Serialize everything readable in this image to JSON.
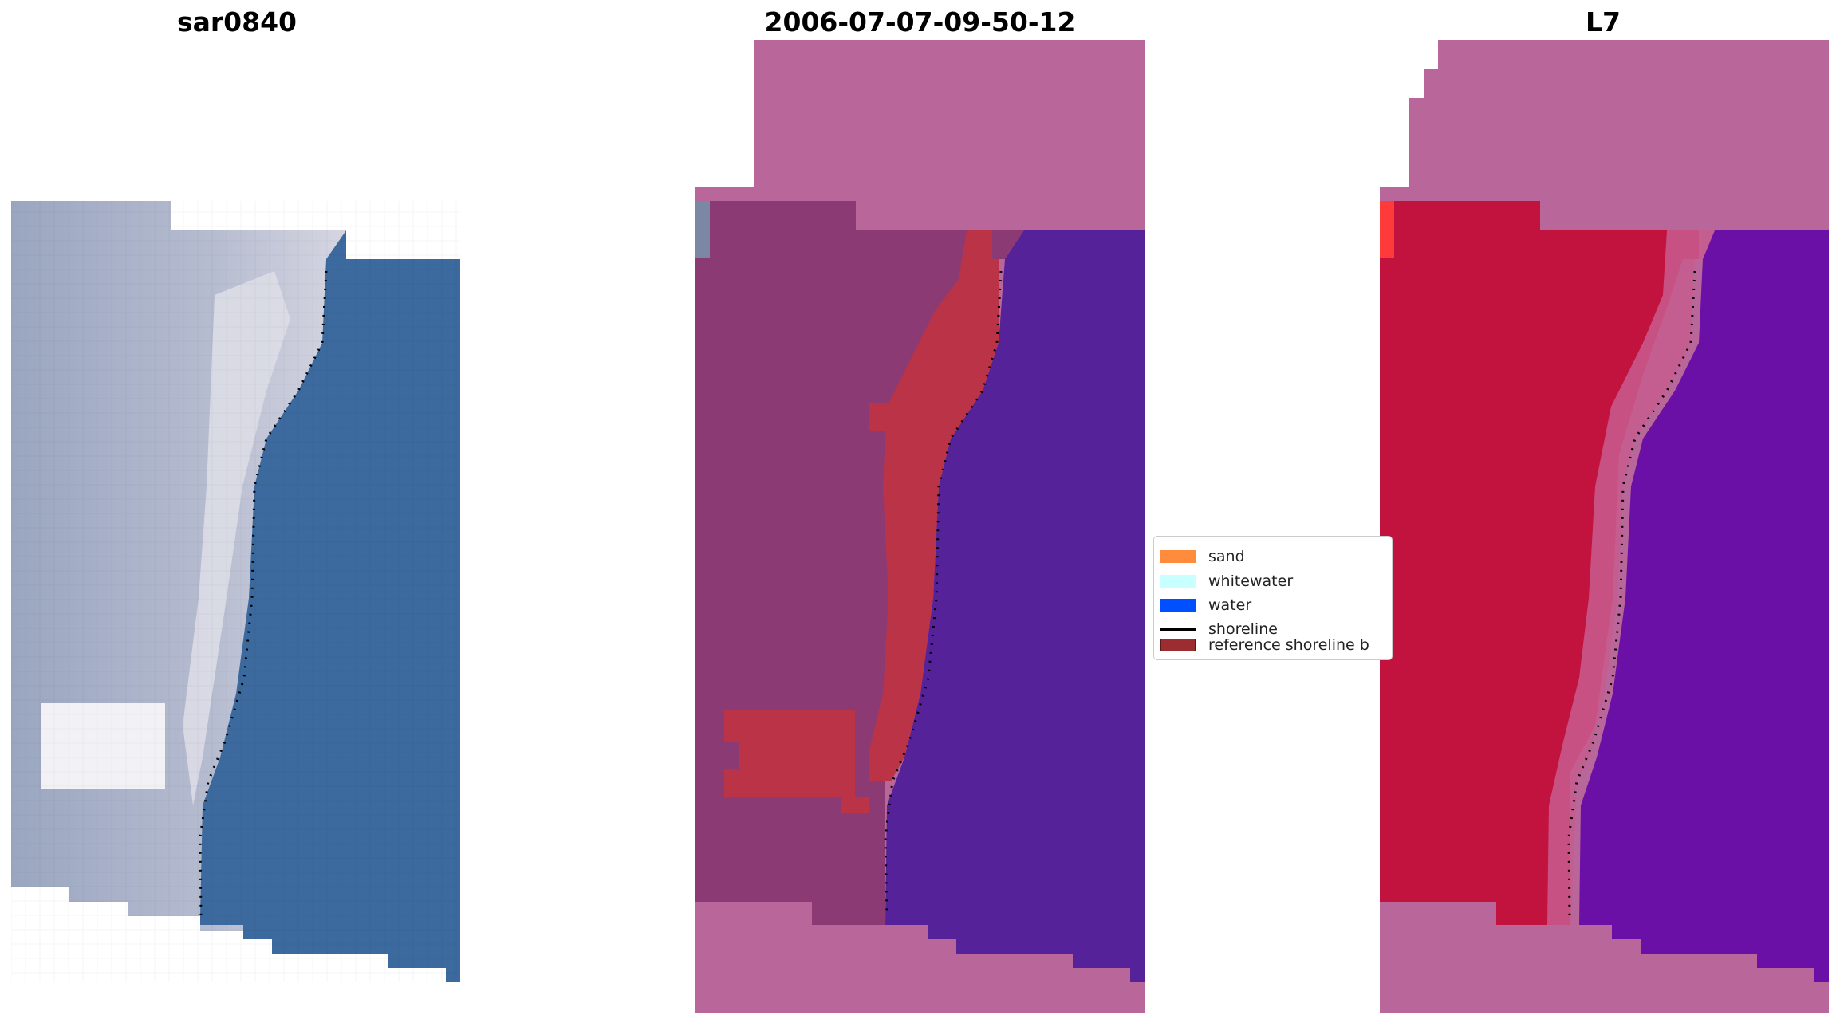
{
  "panels": [
    {
      "title": "sar0840"
    },
    {
      "title": "2006-07-07-09-50-12"
    },
    {
      "title": "L7"
    }
  ],
  "legend": {
    "items": [
      {
        "label": "sand",
        "color": "#ff8c3c",
        "kind": "patch"
      },
      {
        "label": "whitewater",
        "color": "#c8ffff",
        "kind": "patch"
      },
      {
        "label": "water",
        "color": "#0050ff",
        "kind": "patch"
      },
      {
        "label": "shoreline",
        "color": "#000000",
        "kind": "line"
      },
      {
        "label": "reference shoreline b",
        "color": "#9b2d30",
        "kind": "patch"
      }
    ]
  },
  "colors": {
    "nodata": "#b9679a",
    "land_rgb": "#a7aec5",
    "water_rgb": "#3c6a9e",
    "land_class": "#8c3a74",
    "water_class": "#55229a",
    "sand_buffer": "#bb3346",
    "land_index": "#c2133f",
    "water_index": "#6a10a6"
  }
}
